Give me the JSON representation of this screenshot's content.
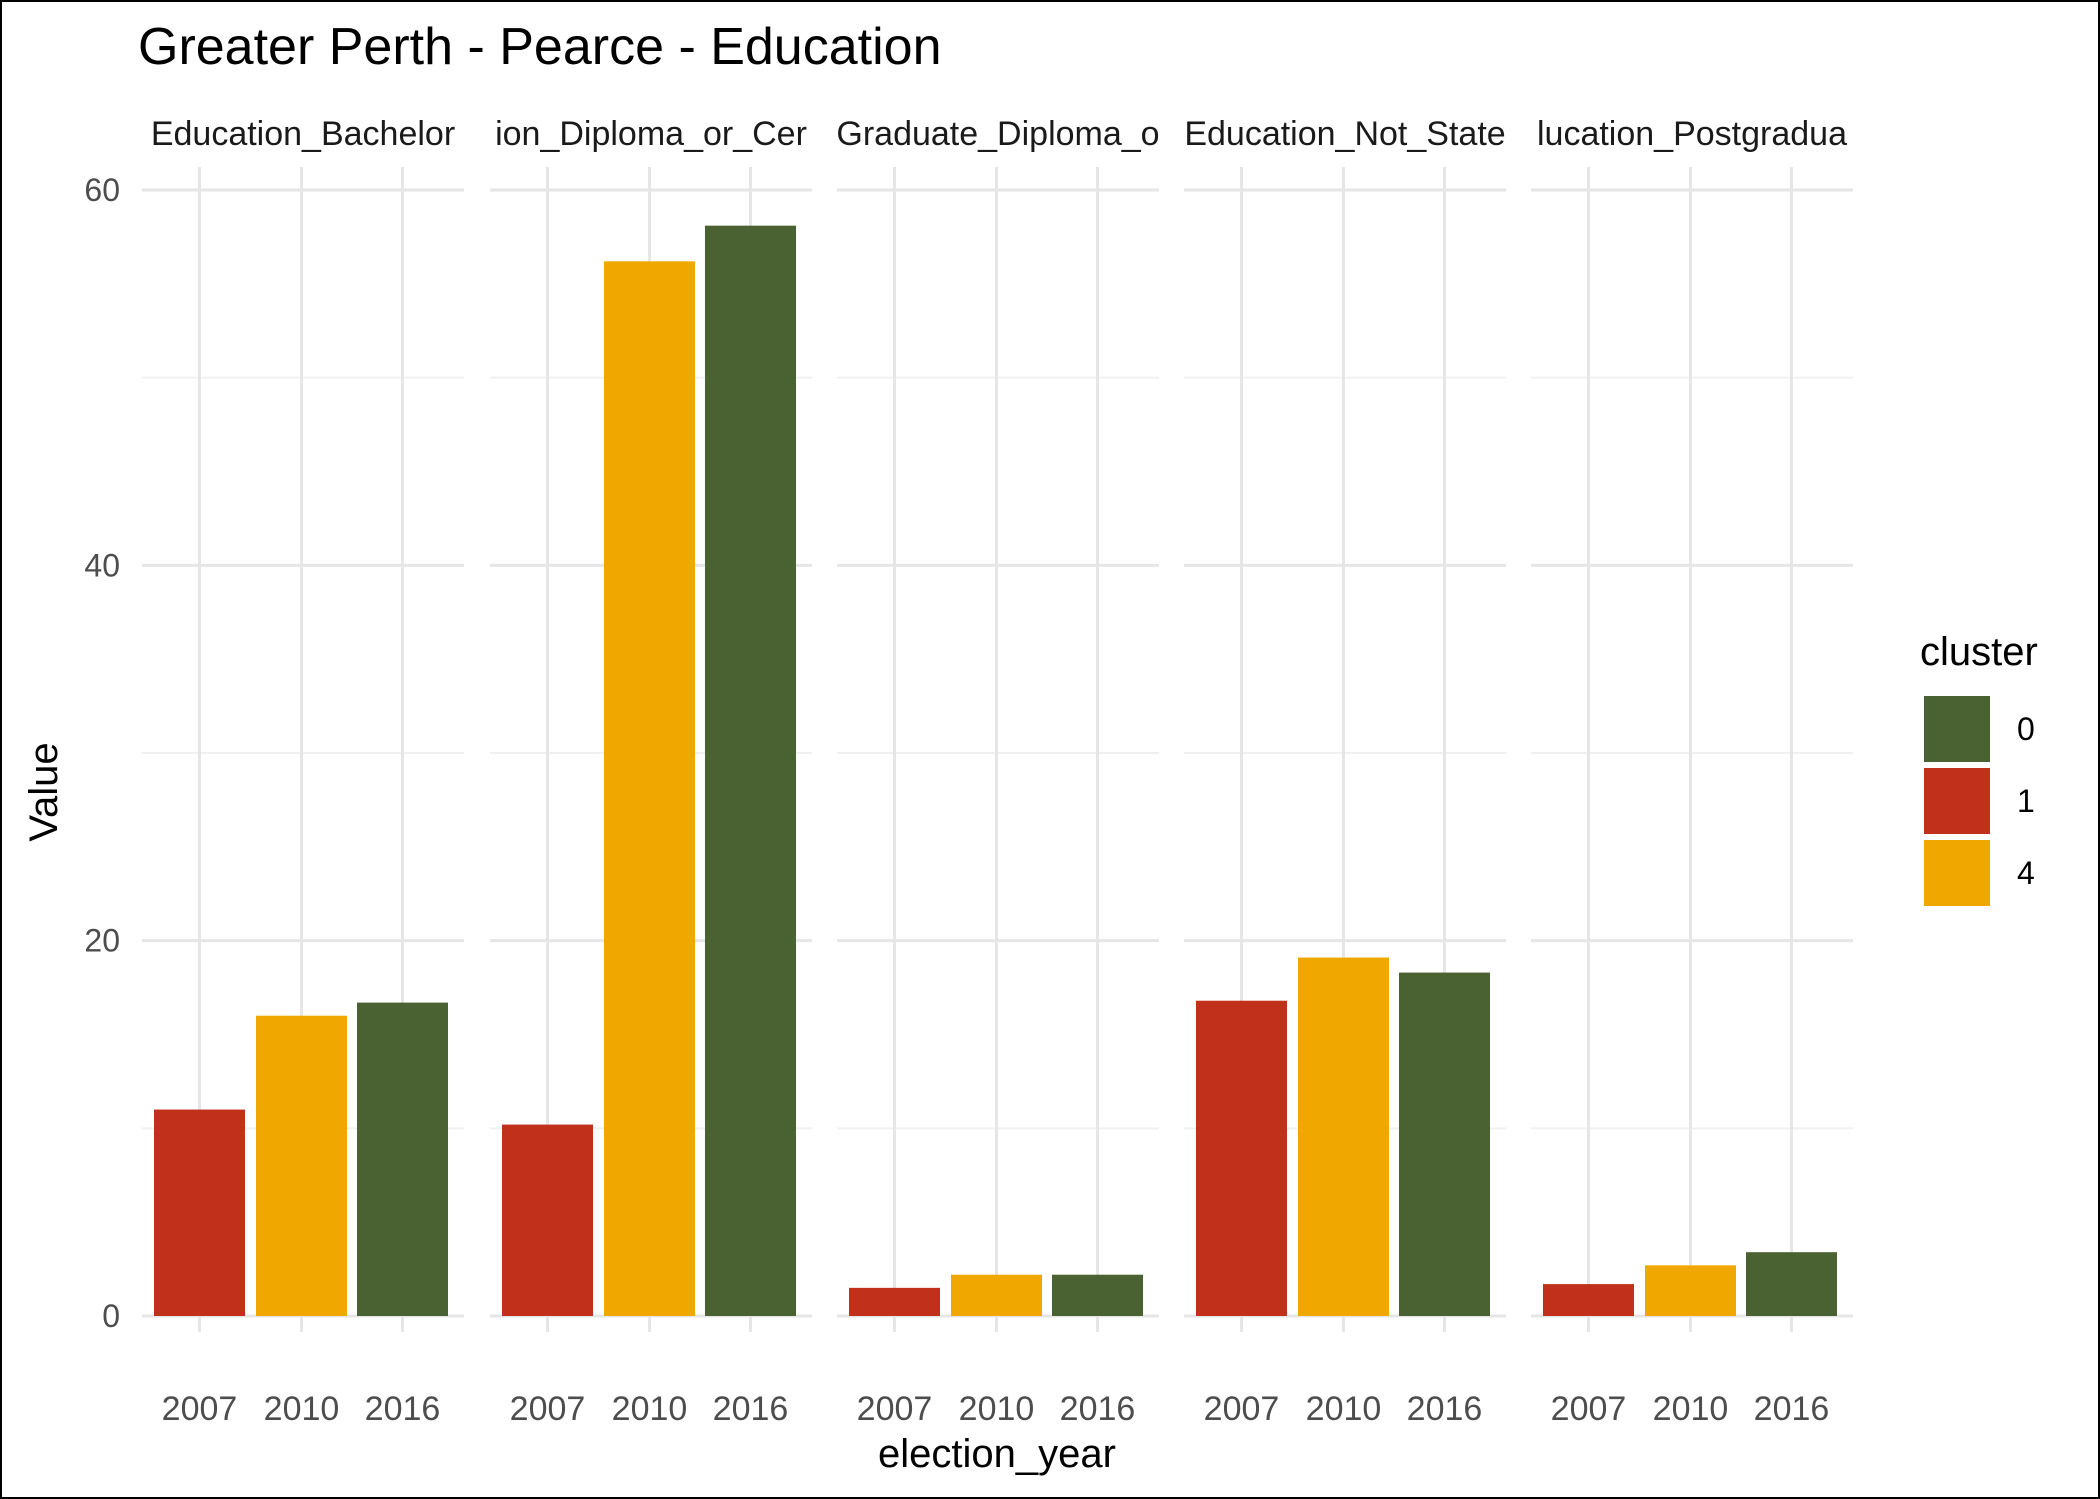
{
  "chart_data": {
    "type": "bar",
    "title": "Greater Perth - Pearce - Education",
    "xlabel": "election_year",
    "ylabel": "Value",
    "ylim": [
      0,
      62
    ],
    "yticks": [
      0,
      20,
      40,
      60
    ],
    "grid": true,
    "legend": {
      "title": "cluster",
      "placement": "right",
      "entries": [
        {
          "label": "0",
          "color": "#4A6131"
        },
        {
          "label": "1",
          "color": "#C1301A"
        },
        {
          "label": "4",
          "color": "#F0A800"
        }
      ]
    },
    "categories": [
      "2007",
      "2010",
      "2016"
    ],
    "category_cluster": [
      "1",
      "4",
      "0"
    ],
    "facets": [
      {
        "label": "Education_Bachelor",
        "values": [
          11.0,
          16.0,
          16.7
        ]
      },
      {
        "label": "ion_Diploma_or_Cer",
        "values": [
          10.2,
          56.2,
          58.1
        ]
      },
      {
        "label": "Graduate_Diploma_o",
        "values": [
          1.5,
          2.2,
          2.2
        ]
      },
      {
        "label": "Education_Not_State",
        "values": [
          16.8,
          19.1,
          18.3
        ]
      },
      {
        "label": "lucation_Postgradua",
        "values": [
          1.7,
          2.7,
          3.4
        ]
      }
    ]
  }
}
